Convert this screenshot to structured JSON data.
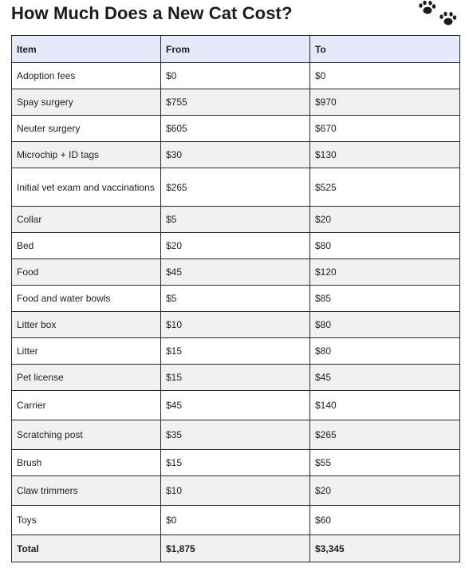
{
  "title": "How Much Does a New Cat Cost?",
  "icons": {
    "decoration": "paw-prints-icon"
  },
  "table": {
    "headers": [
      "Item",
      "From",
      "To"
    ],
    "rows": [
      [
        "Adoption fees",
        "$0",
        "$0"
      ],
      [
        "Spay surgery",
        "$755",
        "$970"
      ],
      [
        "Neuter surgery",
        "$605",
        "$670"
      ],
      [
        "Microchip + ID tags",
        "$30",
        "$130"
      ],
      [
        "Initial vet exam and vaccinations",
        "$265",
        "$525"
      ],
      [
        "Collar",
        "$5",
        "$20"
      ],
      [
        "Bed",
        "$20",
        "$80"
      ],
      [
        "Food",
        "$45",
        "$120"
      ],
      [
        "Food and water bowls",
        "$5",
        "$85"
      ],
      [
        "Litter box",
        "$10",
        "$80"
      ],
      [
        "Litter",
        "$15",
        "$80"
      ],
      [
        "Pet license",
        "$15",
        "$45"
      ],
      [
        "Carrier",
        "$45",
        "$140"
      ],
      [
        "Scratching post",
        "$35",
        "$265"
      ],
      [
        "Brush",
        "$15",
        "$55"
      ],
      [
        "Claw trimmers",
        "$10",
        "$20"
      ],
      [
        "Toys",
        "$0",
        "$60"
      ]
    ],
    "total": [
      "Total",
      "$1,875",
      "$3,345"
    ]
  }
}
